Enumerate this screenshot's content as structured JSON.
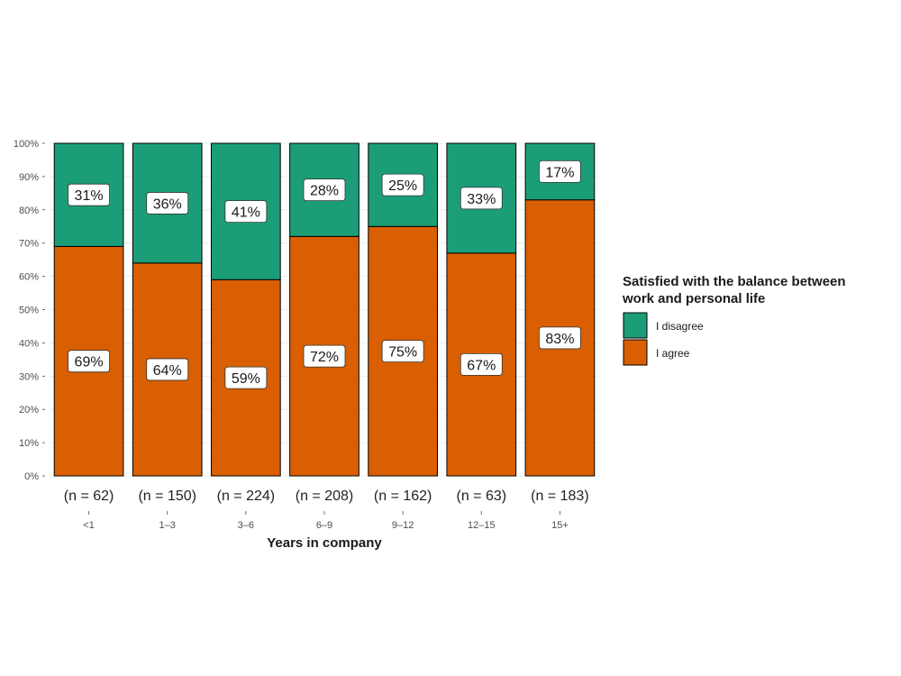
{
  "chart_data": {
    "type": "bar",
    "stacked": true,
    "title": "",
    "xlabel": "Years in company",
    "ylabel": "",
    "ylim": [
      0,
      100
    ],
    "y_ticks": [
      "0%",
      "10%",
      "20%",
      "30%",
      "40%",
      "50%",
      "60%",
      "70%",
      "80%",
      "90%",
      "100%"
    ],
    "categories": [
      "<1",
      "1–3",
      "3–6",
      "6–9",
      "9–12",
      "12–15",
      "15+"
    ],
    "n_labels": [
      "(n = 62)",
      "(n = 150)",
      "(n = 224)",
      "(n = 208)",
      "(n = 162)",
      "(n = 63)",
      "(n = 183)"
    ],
    "series": [
      {
        "name": "I agree",
        "color": "#d95f02",
        "values": [
          69,
          64,
          59,
          72,
          75,
          67,
          83
        ],
        "labels": [
          "69%",
          "64%",
          "59%",
          "72%",
          "75%",
          "67%",
          "83%"
        ]
      },
      {
        "name": "I disagree",
        "color": "#1b9e77",
        "values": [
          31,
          36,
          41,
          28,
          25,
          33,
          17
        ],
        "labels": [
          "31%",
          "36%",
          "41%",
          "28%",
          "25%",
          "33%",
          "17%"
        ]
      }
    ],
    "legend": {
      "title_line1": "Satisfied with the balance between",
      "title_line2": "work and personal life",
      "position": "right",
      "items": [
        {
          "label": "I disagree",
          "color": "#1b9e77"
        },
        {
          "label": "I agree",
          "color": "#d95f02"
        }
      ]
    },
    "grid": true
  }
}
